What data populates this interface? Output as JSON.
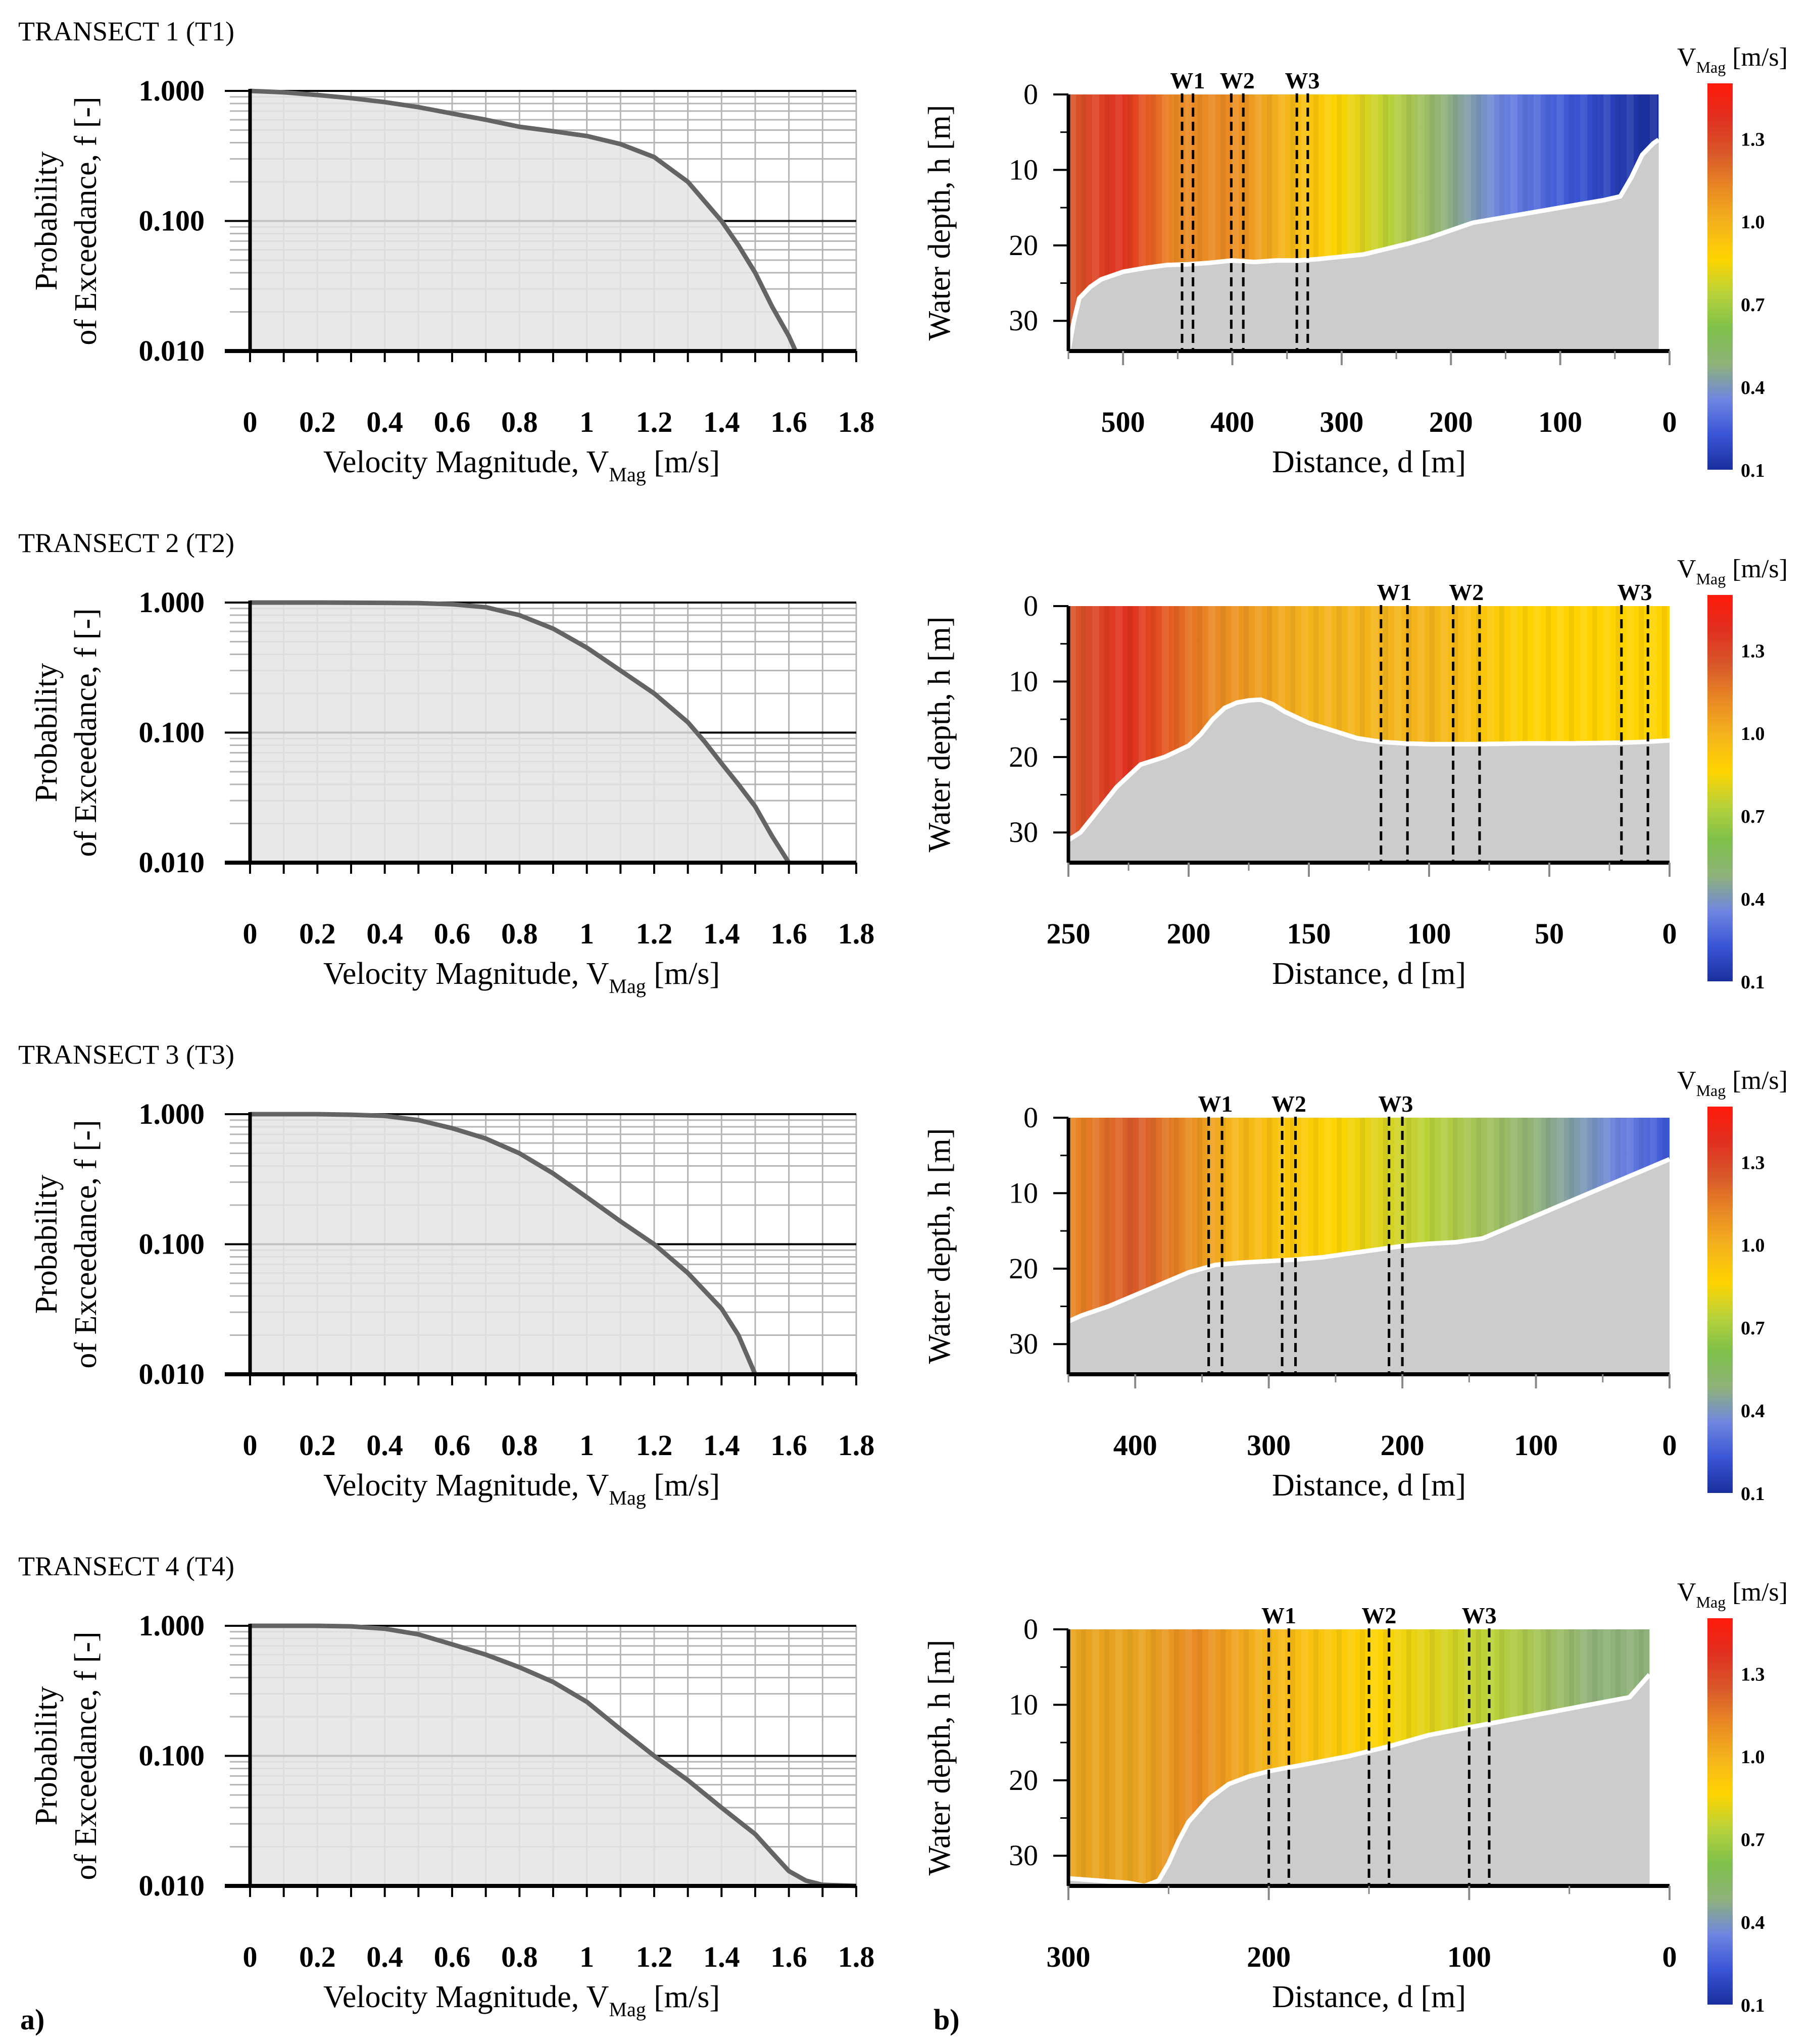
{
  "panel_labels": {
    "a": "a)",
    "b": "b)"
  },
  "colorbar": {
    "title_main": "V",
    "title_sub": "Mag",
    "title_unit": " [m/s]",
    "ticks": [
      "1.3",
      "1.0",
      "0.7",
      "0.4",
      "0.1"
    ],
    "tick_values": [
      1.3,
      1.0,
      0.7,
      0.4,
      0.1
    ],
    "range": [
      0.1,
      1.5
    ],
    "colors": [
      "#1a2f9e",
      "#3a55d6",
      "#6f86e0",
      "#8fb27a",
      "#7dc04a",
      "#b8d23a",
      "#ffd400",
      "#f4b41c",
      "#e98a24",
      "#d8582a",
      "#e03020",
      "#ff1a0a"
    ]
  },
  "exceedance_common": {
    "ylabel_line1": "Probability",
    "ylabel_line2": "of Exceedance, f [-]",
    "xlabel_main": "Velocity Magnitude, V",
    "xlabel_sub": "Mag",
    "xlabel_unit": " [m/s]",
    "x_tick_labels": [
      "0",
      "0.2",
      "0.4",
      "0.6",
      "0.8",
      "1",
      "1.2",
      "1.4",
      "1.6",
      "1.8"
    ],
    "y_tick_labels": [
      "1.000",
      "0.100",
      "0.010"
    ]
  },
  "section_common": {
    "ylabel": "Water depth, h [m]",
    "xlabel": "Distance, d [m]",
    "y_tick_labels": [
      "0",
      "10",
      "20",
      "30"
    ]
  },
  "transects": [
    {
      "title": "TRANSECT 1 (T1)",
      "x_tick_labels": [
        "500",
        "400",
        "300",
        "200",
        "100",
        "0"
      ],
      "x_ticks": [
        500,
        400,
        300,
        200,
        100,
        0
      ],
      "dmax": 550,
      "water_color_profile": [
        [
          550,
          "#d8582a"
        ],
        [
          500,
          "#e03020"
        ],
        [
          450,
          "#e98a24"
        ],
        [
          400,
          "#e98a24"
        ],
        [
          350,
          "#f4b41c"
        ],
        [
          300,
          "#ffd400"
        ],
        [
          250,
          "#b8d23a"
        ],
        [
          200,
          "#8fb27a"
        ],
        [
          150,
          "#6f86e0"
        ],
        [
          80,
          "#3a55d6"
        ],
        [
          10,
          "#1a2f9e"
        ]
      ],
      "wells": [
        {
          "label": "W1",
          "d": [
            446,
            436
          ]
        },
        {
          "label": "W2",
          "d": [
            401,
            390
          ]
        },
        {
          "label": "W3",
          "d": [
            341,
            331
          ]
        }
      ]
    },
    {
      "title": "TRANSECT 2 (T2)",
      "x_tick_labels": [
        "250",
        "200",
        "150",
        "100",
        "50",
        "0"
      ],
      "x_ticks": [
        250,
        200,
        150,
        100,
        50,
        0
      ],
      "dmax": 250,
      "water_color_profile": [
        [
          250,
          "#d8582a"
        ],
        [
          225,
          "#e03020"
        ],
        [
          190,
          "#e98a24"
        ],
        [
          150,
          "#f4b41c"
        ],
        [
          100,
          "#f4b41c"
        ],
        [
          60,
          "#ffd400"
        ],
        [
          0,
          "#ffd400"
        ]
      ],
      "wells": [
        {
          "label": "W1",
          "d": [
            120,
            109
          ]
        },
        {
          "label": "W2",
          "d": [
            90,
            79
          ]
        },
        {
          "label": "W3",
          "d": [
            20,
            9
          ]
        }
      ]
    },
    {
      "title": "TRANSECT 3 (T3)",
      "x_tick_labels": [
        "400",
        "300",
        "200",
        "100",
        "0"
      ],
      "x_ticks": [
        400,
        300,
        200,
        100,
        0
      ],
      "dmax": 450,
      "water_color_profile": [
        [
          450,
          "#e98a24"
        ],
        [
          400,
          "#d8582a"
        ],
        [
          330,
          "#f4b41c"
        ],
        [
          250,
          "#ffd400"
        ],
        [
          180,
          "#b8d23a"
        ],
        [
          100,
          "#8fb27a"
        ],
        [
          40,
          "#6f86e0"
        ],
        [
          0,
          "#3a55d6"
        ]
      ],
      "wells": [
        {
          "label": "W1",
          "d": [
            345,
            335
          ]
        },
        {
          "label": "W2",
          "d": [
            290,
            280
          ]
        },
        {
          "label": "W3",
          "d": [
            210,
            200
          ]
        }
      ]
    },
    {
      "title": "TRANSECT 4 (T4)",
      "x_tick_labels": [
        "300",
        "200",
        "100",
        "0"
      ],
      "x_ticks": [
        300,
        200,
        100,
        0
      ],
      "dmax": 300,
      "water_color_profile": [
        [
          300,
          "#e8a420"
        ],
        [
          262,
          "#e8a420"
        ],
        [
          235,
          "#e98a24"
        ],
        [
          200,
          "#f4b41c"
        ],
        [
          140,
          "#ffd400"
        ],
        [
          80,
          "#b8d23a"
        ],
        [
          30,
          "#8fb27a"
        ],
        [
          10,
          "#8fb27a"
        ]
      ],
      "wells": [
        {
          "label": "W1",
          "d": [
            200,
            190
          ]
        },
        {
          "label": "W2",
          "d": [
            150,
            140
          ]
        },
        {
          "label": "W3",
          "d": [
            100,
            90
          ]
        }
      ]
    }
  ],
  "chart_data": [
    {
      "type": "line",
      "title": "TRANSECT 1 (T1)",
      "xlabel": "Velocity Magnitude, VMag [m/s]",
      "ylabel": "Probability of Exceedance, f [-]",
      "xlim": [
        0,
        1.8
      ],
      "ylim": [
        0.01,
        1.0
      ],
      "yscale": "log",
      "grid": true,
      "x": [
        0,
        0.1,
        0.2,
        0.3,
        0.4,
        0.5,
        0.6,
        0.7,
        0.8,
        0.9,
        1.0,
        1.1,
        1.2,
        1.3,
        1.4,
        1.45,
        1.5,
        1.55,
        1.6,
        1.62
      ],
      "values": [
        1.0,
        0.975,
        0.93,
        0.88,
        0.82,
        0.75,
        0.67,
        0.6,
        0.53,
        0.49,
        0.45,
        0.39,
        0.31,
        0.2,
        0.1,
        0.065,
        0.04,
        0.022,
        0.013,
        0.01
      ]
    },
    {
      "type": "heatmap",
      "title": "TRANSECT 1 (T1)",
      "xlabel": "Distance, d [m]",
      "ylabel": "Water depth, h [m]",
      "xlim": [
        550,
        0
      ],
      "ylim": [
        34,
        0
      ],
      "bed_d": [
        550,
        545,
        540,
        530,
        520,
        500,
        480,
        460,
        440,
        420,
        400,
        380,
        360,
        340,
        320,
        300,
        280,
        260,
        240,
        220,
        200,
        180,
        160,
        140,
        120,
        100,
        80,
        60,
        45,
        35,
        25,
        15,
        10
      ],
      "bed_h": [
        34,
        30,
        27,
        25.5,
        24.5,
        23.5,
        23,
        22.6,
        22.5,
        22.3,
        22,
        22.2,
        22,
        22,
        21.8,
        21.5,
        21.2,
        20.5,
        19.8,
        19,
        18,
        17,
        16.5,
        16,
        15.5,
        15,
        14.5,
        14,
        13.5,
        11,
        8,
        6.5,
        6
      ]
    },
    {
      "type": "line",
      "title": "TRANSECT 2 (T2)",
      "xlabel": "Velocity Magnitude, VMag [m/s]",
      "ylabel": "Probability of Exceedance, f [-]",
      "xlim": [
        0,
        1.8
      ],
      "ylim": [
        0.01,
        1.0
      ],
      "yscale": "log",
      "grid": true,
      "x": [
        0,
        0.2,
        0.4,
        0.5,
        0.6,
        0.7,
        0.8,
        0.9,
        1.0,
        1.1,
        1.2,
        1.3,
        1.35,
        1.4,
        1.45,
        1.5,
        1.55,
        1.6
      ],
      "values": [
        1.0,
        1.0,
        0.995,
        0.99,
        0.97,
        0.92,
        0.8,
        0.63,
        0.45,
        0.3,
        0.2,
        0.12,
        0.085,
        0.058,
        0.04,
        0.027,
        0.016,
        0.01
      ]
    },
    {
      "type": "heatmap",
      "title": "TRANSECT 2 (T2)",
      "xlabel": "Distance, d [m]",
      "ylabel": "Water depth, h [m]",
      "xlim": [
        250,
        0
      ],
      "ylim": [
        34,
        0
      ],
      "bed_d": [
        250,
        245,
        240,
        230,
        220,
        210,
        200,
        195,
        190,
        185,
        180,
        175,
        170,
        165,
        160,
        150,
        140,
        130,
        120,
        110,
        100,
        80,
        60,
        40,
        20,
        10,
        0
      ],
      "bed_h": [
        31,
        30,
        28,
        24,
        21,
        20,
        18.5,
        17,
        15,
        13.5,
        12.8,
        12.5,
        12.4,
        13,
        14,
        15.5,
        16.5,
        17.5,
        18,
        18.2,
        18.3,
        18.3,
        18.2,
        18.2,
        18.1,
        18,
        17.8
      ]
    },
    {
      "type": "line",
      "title": "TRANSECT 3 (T3)",
      "xlabel": "Velocity Magnitude, VMag [m/s]",
      "ylabel": "Probability of Exceedance, f [-]",
      "xlim": [
        0,
        1.8
      ],
      "ylim": [
        0.01,
        1.0
      ],
      "yscale": "log",
      "grid": true,
      "x": [
        0,
        0.2,
        0.3,
        0.4,
        0.5,
        0.6,
        0.7,
        0.8,
        0.9,
        1.0,
        1.1,
        1.2,
        1.3,
        1.4,
        1.45,
        1.5
      ],
      "values": [
        1.0,
        1.0,
        0.99,
        0.97,
        0.9,
        0.78,
        0.65,
        0.5,
        0.35,
        0.23,
        0.15,
        0.1,
        0.06,
        0.032,
        0.02,
        0.01
      ]
    },
    {
      "type": "heatmap",
      "title": "TRANSECT 3 (T3)",
      "xlabel": "Distance, d [m]",
      "ylabel": "Water depth, h [m]",
      "xlim": [
        450,
        0
      ],
      "ylim": [
        34,
        0
      ],
      "bed_d": [
        450,
        440,
        420,
        400,
        380,
        360,
        340,
        320,
        300,
        280,
        260,
        240,
        220,
        200,
        180,
        160,
        140,
        120,
        100,
        80,
        60,
        40,
        20,
        0
      ],
      "bed_h": [
        27,
        26.2,
        25,
        23.5,
        22,
        20.5,
        19.5,
        19.2,
        19,
        18.8,
        18.5,
        18,
        17.5,
        17,
        16.7,
        16.5,
        16,
        14.5,
        13,
        11.5,
        10,
        8.5,
        7,
        5.5
      ]
    },
    {
      "type": "line",
      "title": "TRANSECT 4 (T4)",
      "xlabel": "Velocity Magnitude, VMag [m/s]",
      "ylabel": "Probability of Exceedance, f [-]",
      "xlim": [
        0,
        1.8
      ],
      "ylim": [
        0.01,
        1.0
      ],
      "yscale": "log",
      "grid": true,
      "x": [
        0,
        0.2,
        0.3,
        0.4,
        0.5,
        0.6,
        0.7,
        0.8,
        0.9,
        1.0,
        1.1,
        1.2,
        1.3,
        1.4,
        1.5,
        1.55,
        1.6,
        1.65,
        1.7,
        1.8
      ],
      "values": [
        1.0,
        1.0,
        0.99,
        0.95,
        0.86,
        0.72,
        0.6,
        0.48,
        0.37,
        0.26,
        0.16,
        0.1,
        0.065,
        0.04,
        0.025,
        0.018,
        0.013,
        0.011,
        0.0102,
        0.01
      ]
    },
    {
      "type": "heatmap",
      "title": "TRANSECT 4 (T4)",
      "xlabel": "Distance, d [m]",
      "ylabel": "Water depth, h [m]",
      "xlim": [
        300,
        0
      ],
      "ylim": [
        34,
        0
      ],
      "bed_d": [
        300,
        290,
        280,
        270,
        262,
        255,
        250,
        245,
        240,
        230,
        220,
        210,
        200,
        190,
        180,
        160,
        140,
        120,
        100,
        80,
        60,
        40,
        20,
        10
      ],
      "bed_h": [
        33,
        33.2,
        33.4,
        33.6,
        34,
        33.3,
        31,
        28,
        25.5,
        22.5,
        20.5,
        19.5,
        18.8,
        18.3,
        17.8,
        16.8,
        15.5,
        14,
        13,
        12,
        11,
        10,
        9,
        6
      ]
    }
  ]
}
